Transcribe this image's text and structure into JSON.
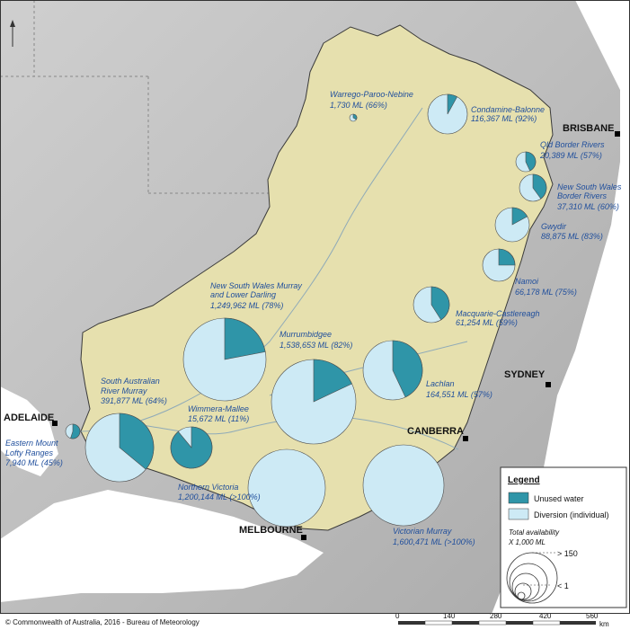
{
  "colors": {
    "unused": "#2f95a8",
    "diversion": "#cdeaf5",
    "basin": "#e8e2b0",
    "sea": "#ffffff",
    "label": "#1f4e9c"
  },
  "legend": {
    "title": "Legend",
    "unused_label": "Unused water",
    "diversion_label": "Diversion (individual)",
    "total_label": "Total availability",
    "units_label": "X 1,000 ML",
    "max_label": "> 150",
    "min_label": "< 1"
  },
  "cities": [
    {
      "name": "BRISBANE"
    },
    {
      "name": "SYDNEY"
    },
    {
      "name": "CANBERRA"
    },
    {
      "name": "MELBOURNE"
    },
    {
      "name": "ADELAIDE"
    }
  ],
  "regions": [
    {
      "name": "Warrego-Paroo-Nebine",
      "value": "1,730 ML (66%)",
      "pct": 66
    },
    {
      "name": "Condamine-Balonne",
      "value": "116,367 ML (92%)",
      "pct": 92
    },
    {
      "name": "Qld Border Rivers",
      "value": "20,389 ML (57%)",
      "pct": 57
    },
    {
      "name": "New South Wales\nBorder Rivers",
      "value": "37,310 ML (60%)",
      "pct": 60
    },
    {
      "name": "Gwydir",
      "value": "88,875 ML (83%)",
      "pct": 83
    },
    {
      "name": "Namoi",
      "value": "66,178 ML (75%)",
      "pct": 75
    },
    {
      "name": "Macquarie-Castlereagh",
      "value": "61,254 ML (59%)",
      "pct": 59
    },
    {
      "name": "Lachlan",
      "value": "164,551 ML (57%)",
      "pct": 57
    },
    {
      "name": "Murrumbidgee",
      "value": "1,538,653 ML (82%)",
      "pct": 82
    },
    {
      "name": "New South Wales Murray\nand Lower Darling",
      "value": "1,249,962 ML (78%)",
      "pct": 78
    },
    {
      "name": "South Australian\nRiver Murray",
      "value": "391,877 ML (64%)",
      "pct": 64
    },
    {
      "name": "Wimmera-Mallee",
      "value": "15,672 ML (11%)",
      "pct": 11
    },
    {
      "name": "Eastern Mount\nLofty Ranges",
      "value": "7,940 ML (45%)",
      "pct": 45
    },
    {
      "name": "Northern Victoria",
      "value": "1,200,144 ML (>100%)",
      "pct": 100
    },
    {
      "name": "Victorian Murray",
      "value": "1,600,471 ML (>100%)",
      "pct": 100
    }
  ],
  "scale": {
    "ticks": [
      "0",
      "140",
      "280",
      "420",
      "560"
    ],
    "unit": "km"
  },
  "footer": {
    "copyright": "© Commonwealth of Australia, 2016 - Bureau of Meteorology"
  }
}
